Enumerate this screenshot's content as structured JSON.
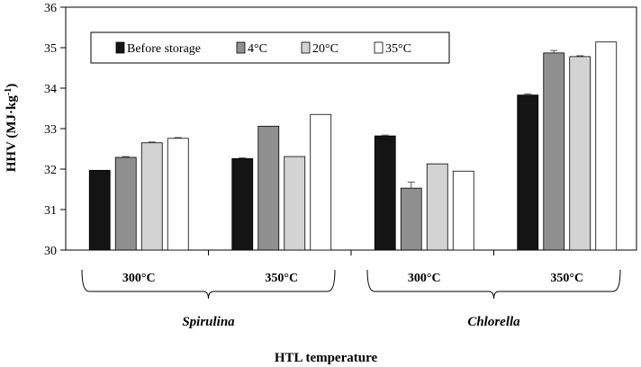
{
  "chart_data": {
    "type": "bar",
    "ylabel_main": "HHV (MJ·kg",
    "ylabel_sup": "-1",
    "ylabel_close": ")",
    "xlabel": "HTL temperature",
    "ylim": [
      30,
      36
    ],
    "yticks": [
      "30",
      "31",
      "32",
      "33",
      "34",
      "35",
      "36"
    ],
    "groups": [
      "Spirulina",
      "Chlorella"
    ],
    "categories": [
      {
        "species": "Spirulina",
        "temp": "300°C"
      },
      {
        "species": "Spirulina",
        "temp": "350°C"
      },
      {
        "species": "Chlorella",
        "temp": "300°C"
      },
      {
        "species": "Chlorella",
        "temp": "350°C"
      }
    ],
    "series": [
      {
        "name": "Before storage",
        "color": "#141414",
        "values": [
          31.97,
          32.26,
          32.82,
          33.83
        ],
        "errors": [
          0,
          0.02,
          0.02,
          0.03
        ]
      },
      {
        "name": "4°C",
        "color": "#8f8f8f",
        "values": [
          32.29,
          33.06,
          31.53,
          34.87
        ],
        "errors": [
          0.02,
          0,
          0.15,
          0.06
        ]
      },
      {
        "name": "20°C",
        "color": "#d3d3d3",
        "values": [
          32.65,
          32.31,
          32.13,
          34.78
        ],
        "errors": [
          0.02,
          0,
          0,
          0.02
        ]
      },
      {
        "name": "35°C",
        "color": "#ffffff",
        "values": [
          32.76,
          33.35,
          31.95,
          35.14
        ],
        "errors": [
          0.02,
          0,
          0,
          0
        ]
      }
    ],
    "grid": false,
    "legend_position": "top-left inside"
  }
}
